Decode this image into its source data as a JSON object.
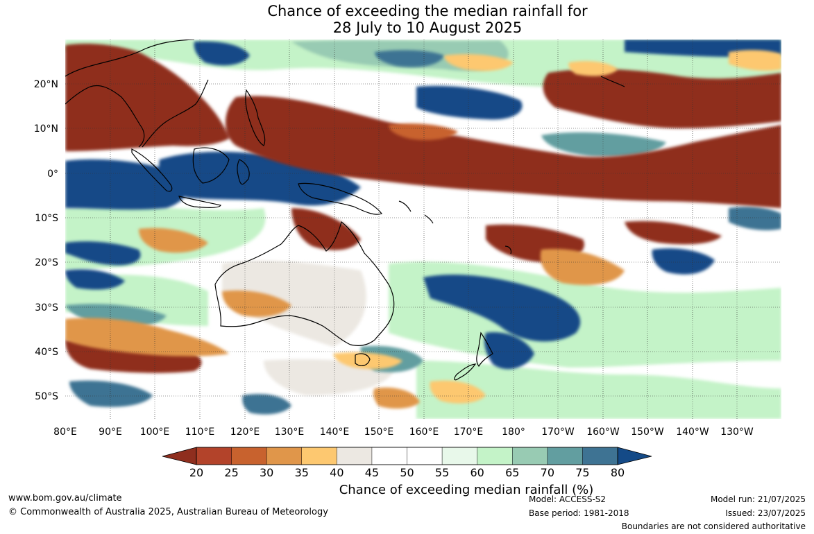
{
  "title_line1": "Chance of exceeding the median rainfall for",
  "title_line2": "28 July to 10 August 2025",
  "lat_labels": [
    "20°N",
    "10°N",
    "0°",
    "10°S",
    "20°S",
    "30°S",
    "40°S",
    "50°S"
  ],
  "lon_labels": [
    "80°E",
    "90°E",
    "100°E",
    "110°E",
    "120°E",
    "130°E",
    "140°E",
    "150°E",
    "160°E",
    "170°E",
    "180°",
    "170°W",
    "160°W",
    "150°W",
    "140°W",
    "130°W"
  ],
  "colorbar": {
    "ticks": [
      "20",
      "25",
      "30",
      "35",
      "40",
      "45",
      "50",
      "55",
      "60",
      "65",
      "70",
      "75",
      "80"
    ],
    "colors": [
      "#8f2e1e",
      "#b3432a",
      "#c8622e",
      "#e0964a",
      "#fdc870",
      "#ece8e2",
      "#ffffff",
      "#ffffff",
      "#e8f8ea",
      "#c4f3c8",
      "#98cbb3",
      "#629ea0",
      "#3e7393",
      "#144a87"
    ],
    "title": "Chance of exceeding median rainfall (%)"
  },
  "footer": {
    "website": "www.bom.gov.au/climate",
    "copyright": "© Commonwealth of Australia 2025, Australian Bureau of Meteorology",
    "model": "Model: ACCESS-S2",
    "base_period": "Base period: 1981-2018",
    "model_run": "Model run: 21/07/2025",
    "issued": "Issued: 23/07/2025",
    "disclaimer": "Boundaries are not considered authoritative"
  }
}
